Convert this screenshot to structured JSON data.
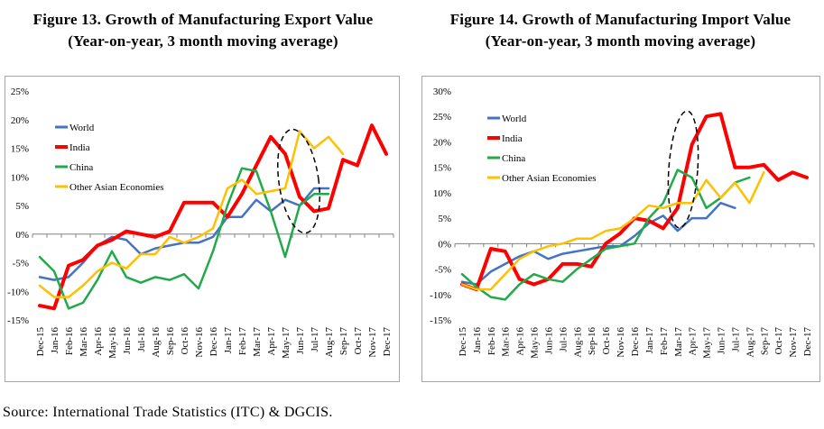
{
  "source": "Source: International Trade Statistics (ITC) & DGCIS.",
  "colors": {
    "World": "#4472c4",
    "India": "#ff0000",
    "China": "#22aa4a",
    "Other Asian Economies": "#ffc000"
  },
  "chart_data": [
    {
      "type": "line",
      "title": "Figure 13.  Growth of Manufacturing Export Value",
      "subtitle": "(Year-on-year, 3 month moving average)",
      "xlabel": "",
      "ylabel": "",
      "ylim": [
        -15,
        25
      ],
      "yticks": [
        -15,
        -10,
        -5,
        0,
        5,
        10,
        15,
        20,
        25
      ],
      "ytick_labels": [
        "-15%",
        "-10%",
        "-5%",
        "0%",
        "5%",
        "10%",
        "15%",
        "20%",
        "25%"
      ],
      "categories": [
        "Dec-15",
        "Jan-16",
        "Feb-16",
        "Mar-16",
        "Apr-16",
        "May-16",
        "Jun-16",
        "Jul-16",
        "Aug-16",
        "Sep-16",
        "Oct-16",
        "Nov-16",
        "Dec-16",
        "Jan-17",
        "Feb-17",
        "Mar-17",
        "Apr-17",
        "May-17",
        "Jun-17",
        "Jul-17",
        "Aug-17",
        "Sep-17",
        "Oct-17",
        "Nov-17",
        "Dec-17"
      ],
      "legend_position": "left",
      "series": [
        {
          "name": "World",
          "values": [
            -7.5,
            -8,
            -7.5,
            -5,
            -2,
            -0.5,
            -1,
            -3.5,
            -2.5,
            -2,
            -1.5,
            -1.5,
            -0.5,
            3,
            3,
            6,
            4,
            6,
            5,
            8,
            8,
            null,
            null,
            null,
            null
          ]
        },
        {
          "name": "India",
          "values": [
            -12.5,
            -13,
            -5.5,
            -4.5,
            -2,
            -1,
            0.5,
            0,
            -0.5,
            0.5,
            5.5,
            5.5,
            5.5,
            3,
            7,
            12,
            17,
            14,
            6.5,
            4,
            4.5,
            13,
            12,
            19,
            14
          ]
        },
        {
          "name": "China",
          "values": [
            -4,
            -6.5,
            -13,
            -12,
            -8,
            -3,
            -7.5,
            -8.5,
            -7.5,
            -8,
            -7,
            -9.5,
            -3,
            5,
            11.5,
            11,
            4,
            -4,
            5,
            7,
            7,
            null,
            null,
            null,
            null
          ]
        },
        {
          "name": "Other Asian Economies",
          "values": [
            -9,
            -11,
            -11,
            -9,
            -6.5,
            -5,
            -6,
            -3.5,
            -3.5,
            -0.5,
            -1.5,
            -0.5,
            1,
            8,
            9.5,
            7,
            7.5,
            8,
            18,
            15,
            17,
            14,
            null,
            null,
            null
          ]
        }
      ]
    },
    {
      "type": "line",
      "title": "Figure 14. Growth of Manufacturing Import Value",
      "subtitle": "(Year-on-year, 3 month moving average)",
      "xlabel": "",
      "ylabel": "",
      "ylim": [
        -15,
        30
      ],
      "yticks": [
        -15,
        -10,
        -5,
        0,
        5,
        10,
        15,
        20,
        25,
        30
      ],
      "ytick_labels": [
        "-15%",
        "-10%",
        "-5%",
        "0%",
        "5%",
        "10%",
        "15%",
        "20%",
        "25%",
        "30%"
      ],
      "categories": [
        "Dec-15",
        "Jan-16",
        "Feb-16",
        "Mar-16",
        "Apr-16",
        "May-16",
        "Jun-16",
        "Jul-16",
        "Aug-16",
        "Sep-16",
        "Oct-16",
        "Nov-16",
        "Dec-16",
        "Jan-17",
        "Feb-17",
        "Mar-17",
        "Apr-17",
        "May-17",
        "Jun-17",
        "Jul-17",
        "Aug-17",
        "Sep-17",
        "Oct-17",
        "Nov-17",
        "Dec-17"
      ],
      "legend_position": "left",
      "series": [
        {
          "name": "World",
          "values": [
            -7.5,
            -8,
            -5.5,
            -4,
            -2.5,
            -1.5,
            -3,
            -2,
            -1.5,
            -1,
            -0.5,
            -0.5,
            1.5,
            4,
            5.5,
            2.5,
            5,
            5,
            8,
            7,
            null,
            null,
            null,
            null,
            null
          ]
        },
        {
          "name": "India",
          "values": [
            -8,
            -9,
            -1,
            -1.5,
            -7,
            -8,
            -7,
            -4,
            -4,
            -4.5,
            0,
            2,
            5,
            4.5,
            3,
            7,
            19.5,
            25,
            25.5,
            15,
            15,
            15.5,
            12.5,
            14,
            13
          ]
        },
        {
          "name": "China",
          "values": [
            -6,
            -8.5,
            -10.5,
            -11,
            -8,
            -6,
            -7,
            -7.5,
            -5,
            -3,
            -1,
            -0.5,
            0,
            5,
            8,
            14.5,
            13,
            7,
            9,
            12,
            13,
            null,
            null,
            null,
            null
          ]
        },
        {
          "name": "Other Asian Economies",
          "values": [
            -8,
            -9,
            -9,
            -6,
            -3,
            -1.5,
            -0.5,
            0,
            1,
            1,
            2.5,
            3,
            5,
            7.5,
            7,
            8,
            8,
            12.5,
            9,
            12,
            8,
            14,
            null,
            null,
            null
          ]
        }
      ]
    }
  ]
}
